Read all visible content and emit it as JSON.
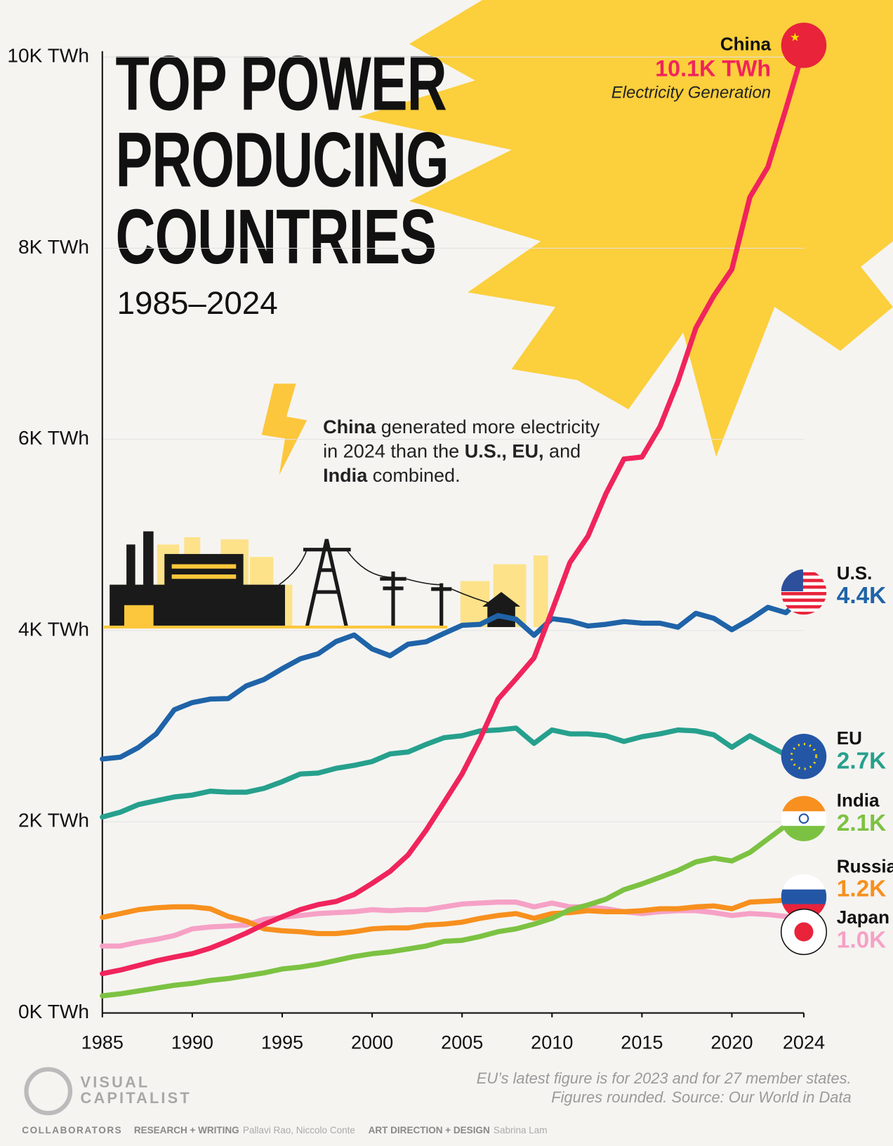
{
  "chart_data": {
    "type": "line",
    "title": "TOP POWER PRODUCING COUNTRIES",
    "subtitle": "1985–2024",
    "annotation": [
      {
        "text": "China",
        "bold": true
      },
      {
        "text": " generated more electricity in 2024 than the ",
        "bold": false
      },
      {
        "text": "U.S., EU,",
        "bold": true
      },
      {
        "text": " and ",
        "bold": false
      },
      {
        "text": "India",
        "bold": true
      },
      {
        "text": " combined.",
        "bold": false
      }
    ],
    "highlight_caption": "Electricity Generation",
    "x": [
      1985,
      1986,
      1987,
      1988,
      1989,
      1990,
      1991,
      1992,
      1993,
      1994,
      1995,
      1996,
      1997,
      1998,
      1999,
      2000,
      2001,
      2002,
      2003,
      2004,
      2005,
      2006,
      2007,
      2008,
      2009,
      2010,
      2011,
      2012,
      2013,
      2014,
      2015,
      2016,
      2017,
      2018,
      2019,
      2020,
      2021,
      2022,
      2023,
      2024
    ],
    "xlim": [
      1985,
      2024
    ],
    "xticks": [
      1985,
      1990,
      1995,
      2000,
      2005,
      2010,
      2015,
      2020,
      2024
    ],
    "ylim": [
      0,
      10000
    ],
    "yticks": [
      {
        "value": 0,
        "label": "0K TWh"
      },
      {
        "value": 2000,
        "label": "2K TWh"
      },
      {
        "value": 4000,
        "label": "4K TWh"
      },
      {
        "value": 6000,
        "label": "6K TWh"
      },
      {
        "value": 8000,
        "label": "8K TWh"
      },
      {
        "value": 10000,
        "label": "10K TWh"
      }
    ],
    "grid": true,
    "series": [
      {
        "name": "China",
        "color": "#f0245c",
        "end_label": "10.1K TWh",
        "values": [
          411,
          449,
          497,
          545,
          585,
          621,
          678,
          754,
          836,
          928,
          1007,
          1081,
          1134,
          1167,
          1239,
          1356,
          1481,
          1654,
          1911,
          2204,
          2500,
          2866,
          3282,
          3496,
          3715,
          4208,
          4713,
          4988,
          5432,
          5795,
          5815,
          6133,
          6604,
          7166,
          7503,
          7779,
          8534,
          8849,
          9456,
          10087
        ]
      },
      {
        "name": "U.S.",
        "color": "#1f63a8",
        "end_label": "4.4K",
        "values": [
          2657,
          2676,
          2776,
          2920,
          3172,
          3247,
          3284,
          3289,
          3421,
          3489,
          3602,
          3704,
          3758,
          3886,
          3954,
          3808,
          3737,
          3858,
          3883,
          3971,
          4055,
          4065,
          4157,
          4119,
          3951,
          4125,
          4100,
          4048,
          4066,
          4094,
          4078,
          4077,
          4035,
          4181,
          4128,
          4009,
          4116,
          4243,
          4187,
          4360
        ]
      },
      {
        "name": "EU",
        "color": "#26a08d",
        "end_label": "2.7K",
        "values": [
          2050,
          2100,
          2180,
          2220,
          2260,
          2280,
          2320,
          2310,
          2310,
          2350,
          2420,
          2500,
          2510,
          2560,
          2590,
          2630,
          2710,
          2730,
          2810,
          2880,
          2900,
          2950,
          2960,
          2980,
          2820,
          2960,
          2920,
          2920,
          2900,
          2840,
          2890,
          2920,
          2960,
          2950,
          2910,
          2780,
          2900,
          2800,
          2700,
          null
        ]
      },
      {
        "name": "India",
        "color": "#7cc242",
        "end_label": "2.1K",
        "values": [
          180,
          200,
          230,
          260,
          290,
          310,
          340,
          360,
          390,
          420,
          460,
          480,
          510,
          550,
          590,
          620,
          640,
          670,
          700,
          750,
          760,
          800,
          850,
          880,
          930,
          990,
          1080,
          1130,
          1190,
          1290,
          1350,
          1420,
          1490,
          1580,
          1620,
          1590,
          1680,
          1820,
          1960,
          2055
        ]
      },
      {
        "name": "Russia",
        "color": "#f7901e",
        "end_label": "1.2K",
        "values": [
          1000,
          1040,
          1080,
          1100,
          1110,
          1110,
          1090,
          1010,
          960,
          880,
          860,
          850,
          830,
          830,
          850,
          880,
          890,
          890,
          920,
          930,
          950,
          990,
          1020,
          1040,
          990,
          1040,
          1050,
          1070,
          1060,
          1060,
          1070,
          1090,
          1090,
          1110,
          1120,
          1090,
          1160,
          1170,
          1180,
          1210
        ]
      },
      {
        "name": "Japan",
        "color": "#f6a1c6",
        "end_label": "1.0K",
        "values": [
          700,
          700,
          740,
          770,
          810,
          880,
          900,
          910,
          920,
          980,
          1000,
          1020,
          1040,
          1050,
          1060,
          1080,
          1070,
          1080,
          1080,
          1110,
          1140,
          1150,
          1160,
          1160,
          1110,
          1150,
          1110,
          1110,
          1090,
          1060,
          1040,
          1060,
          1070,
          1070,
          1050,
          1020,
          1040,
          1030,
          1010,
          1010
        ]
      }
    ],
    "notes": [
      "EU’s latest figure is for 2023 and for 27 member states.",
      "Figures rounded. Source: Our World in Data"
    ],
    "brand": [
      "VISUAL",
      "CAPITALIST"
    ],
    "credits": {
      "label": "COLLABORATORS",
      "roles": [
        {
          "role": "RESEARCH + WRITING",
          "names": "Pallavi Rao, Niccolo Conte"
        },
        {
          "role": "ART DIRECTION + DESIGN",
          "names": "Sabrina Lam"
        }
      ]
    }
  }
}
